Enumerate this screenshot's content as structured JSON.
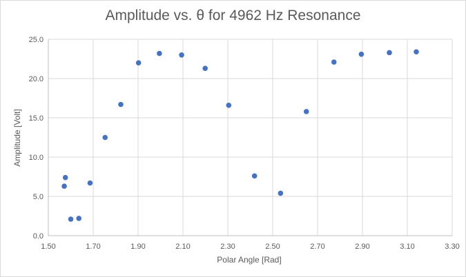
{
  "chart_data": {
    "type": "scatter",
    "title": "Amplitude vs. θ for 4962 Hz Resonance",
    "xlabel": "Polar Angle [Rad]",
    "ylabel": "Amplitude [Volt]",
    "xlim": [
      1.5,
      3.3
    ],
    "ylim": [
      0,
      25
    ],
    "x_ticks": [
      "1.50",
      "1.70",
      "1.90",
      "2.10",
      "2.30",
      "2.50",
      "2.70",
      "2.90",
      "3.10",
      "3.30"
    ],
    "y_ticks": [
      "0.0",
      "5.0",
      "10.0",
      "15.0",
      "20.0",
      "25.0"
    ],
    "grid": true,
    "legend": "none",
    "marker_color": "#4472c4",
    "series": [
      {
        "x": [
          1.571,
          1.576,
          1.6,
          1.636,
          1.686,
          1.753,
          1.823,
          1.902,
          1.995,
          2.094,
          2.199,
          2.304,
          2.419,
          2.535,
          2.65,
          2.773,
          2.895,
          3.02,
          3.14
        ],
        "y": [
          6.3,
          7.4,
          2.1,
          2.2,
          6.7,
          12.5,
          16.7,
          22.0,
          23.2,
          23.0,
          21.3,
          16.6,
          7.6,
          5.4,
          15.8,
          22.1,
          23.1,
          23.3,
          23.4
        ]
      }
    ]
  }
}
